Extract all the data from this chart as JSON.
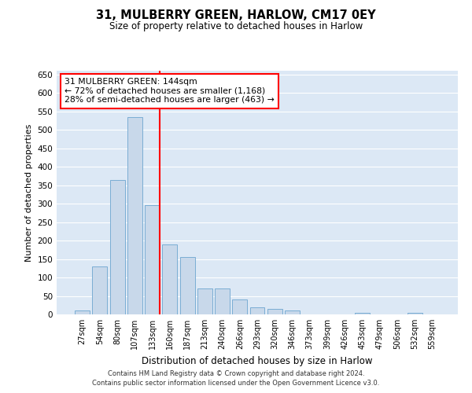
{
  "title": "31, MULBERRY GREEN, HARLOW, CM17 0EY",
  "subtitle": "Size of property relative to detached houses in Harlow",
  "xlabel": "Distribution of detached houses by size in Harlow",
  "ylabel": "Number of detached properties",
  "categories": [
    "27sqm",
    "54sqm",
    "80sqm",
    "107sqm",
    "133sqm",
    "160sqm",
    "187sqm",
    "213sqm",
    "240sqm",
    "266sqm",
    "293sqm",
    "320sqm",
    "346sqm",
    "373sqm",
    "399sqm",
    "426sqm",
    "453sqm",
    "479sqm",
    "506sqm",
    "532sqm",
    "559sqm"
  ],
  "values": [
    10,
    130,
    365,
    535,
    295,
    190,
    155,
    70,
    70,
    40,
    20,
    15,
    10,
    0,
    0,
    0,
    5,
    0,
    0,
    5,
    0
  ],
  "bar_color": "#c8d8ea",
  "bar_edgecolor": "#7aadd4",
  "redline_index": 4,
  "annotation_line1": "31 MULBERRY GREEN: 144sqm",
  "annotation_line2": "← 72% of detached houses are smaller (1,168)",
  "annotation_line3": "28% of semi-detached houses are larger (463) →",
  "ylim": [
    0,
    660
  ],
  "yticks": [
    0,
    50,
    100,
    150,
    200,
    250,
    300,
    350,
    400,
    450,
    500,
    550,
    600,
    650
  ],
  "bg_color": "#dce8f5",
  "grid_color": "#ffffff",
  "footer1": "Contains HM Land Registry data © Crown copyright and database right 2024.",
  "footer2": "Contains public sector information licensed under the Open Government Licence v3.0."
}
